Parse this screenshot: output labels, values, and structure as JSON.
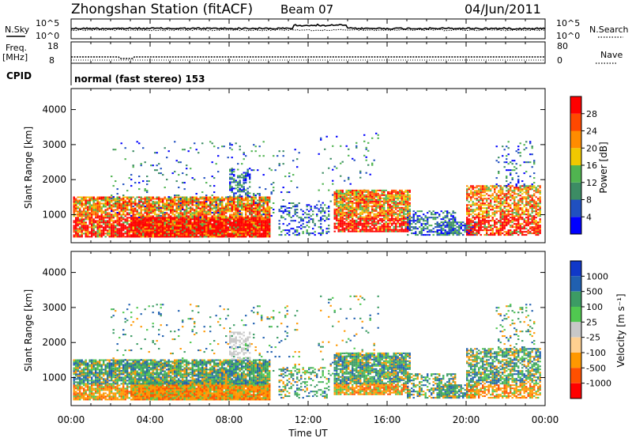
{
  "header": {
    "station": "Zhongshan Station (fitACF)",
    "beam": "Beam 07",
    "date": "04/Jun/2011"
  },
  "noise_panel": {
    "left_label": "N.Sky",
    "left_ticks": [
      "10^5",
      "10^0"
    ],
    "right_label": "N.Search",
    "right_ticks": [
      "10^5",
      "10^0"
    ]
  },
  "freq_panel": {
    "left_label_line1": "Freq.",
    "left_label_line2": "[MHz]",
    "left_ticks": [
      "18",
      "8"
    ],
    "right_label": "Nave",
    "right_ticks": [
      "80",
      "0"
    ]
  },
  "cpid": {
    "label": "CPID",
    "value": "normal (fast stereo) 153"
  },
  "colors": {
    "power": [
      "#0000ff",
      "#2050c0",
      "#3c8c64",
      "#50b450",
      "#f0c800",
      "#ff8c00",
      "#ff4800",
      "#ff0000"
    ],
    "velocity": [
      "#ff0000",
      "#ff5000",
      "#ff9800",
      "#ffd090",
      "#c8c8c8",
      "#50c850",
      "#3c9c64",
      "#2060b0",
      "#1038c8"
    ]
  },
  "chart_data": [
    {
      "type": "heatmap",
      "panel": "power",
      "ylabel": "Slant Range [km]",
      "yticks": [
        "1000",
        "2000",
        "3000",
        "4000"
      ],
      "ylim": [
        200,
        4600
      ],
      "colorbar": {
        "label": "Power [dB]",
        "ticks": [
          "4",
          "8",
          "12",
          "16",
          "20",
          "24",
          "28"
        ],
        "range": [
          0,
          32
        ]
      }
    },
    {
      "type": "heatmap",
      "panel": "velocity",
      "ylabel": "Slant Range [km]",
      "yticks": [
        "1000",
        "2000",
        "3000",
        "4000"
      ],
      "ylim": [
        200,
        4600
      ],
      "colorbar": {
        "label": "Velocity [m s⁻¹]",
        "ticks": [
          "1000",
          "500",
          "100",
          "25",
          "-25",
          "-100",
          "-500",
          "-1000"
        ]
      }
    }
  ],
  "x_axis": {
    "ticks": [
      "00:00",
      "04:00",
      "08:00",
      "12:00",
      "16:00",
      "20:00",
      "00:00"
    ],
    "xlabel": "Time UT"
  }
}
